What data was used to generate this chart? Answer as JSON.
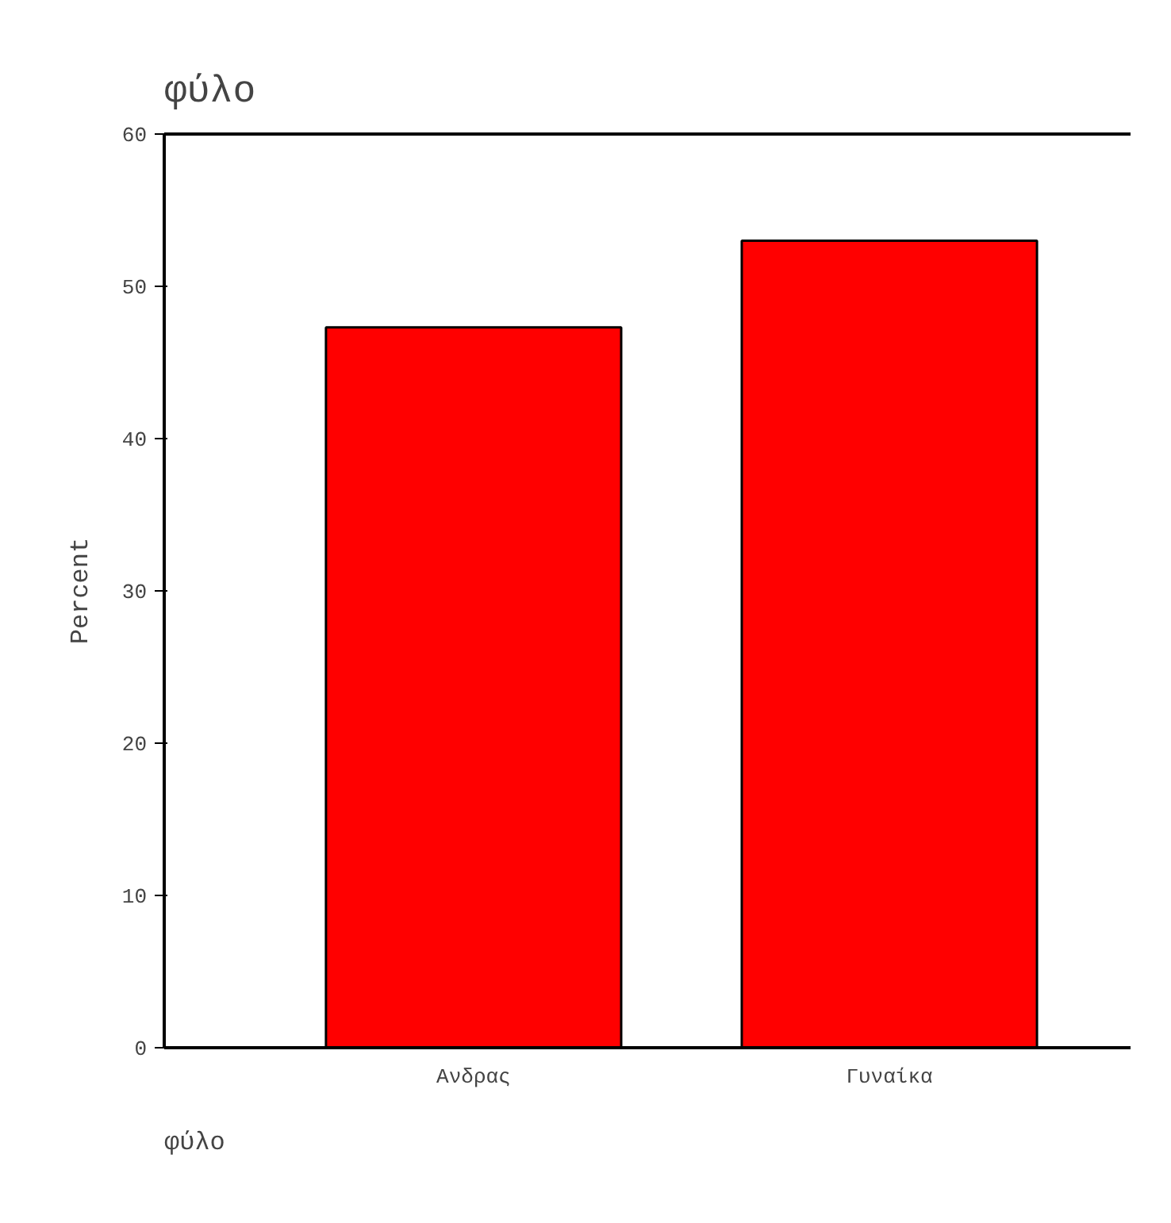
{
  "chart_data": {
    "type": "bar",
    "title": "φύλο",
    "xlabel": "φύλο",
    "ylabel": "Percent",
    "categories": [
      "Ανδρας",
      "Γυναίκα"
    ],
    "values": [
      47.3,
      53.0
    ],
    "color": "#ff0000",
    "ylim": [
      0,
      60
    ],
    "yticks": [
      0,
      10,
      20,
      30,
      40,
      50,
      60
    ],
    "grid": false
  }
}
